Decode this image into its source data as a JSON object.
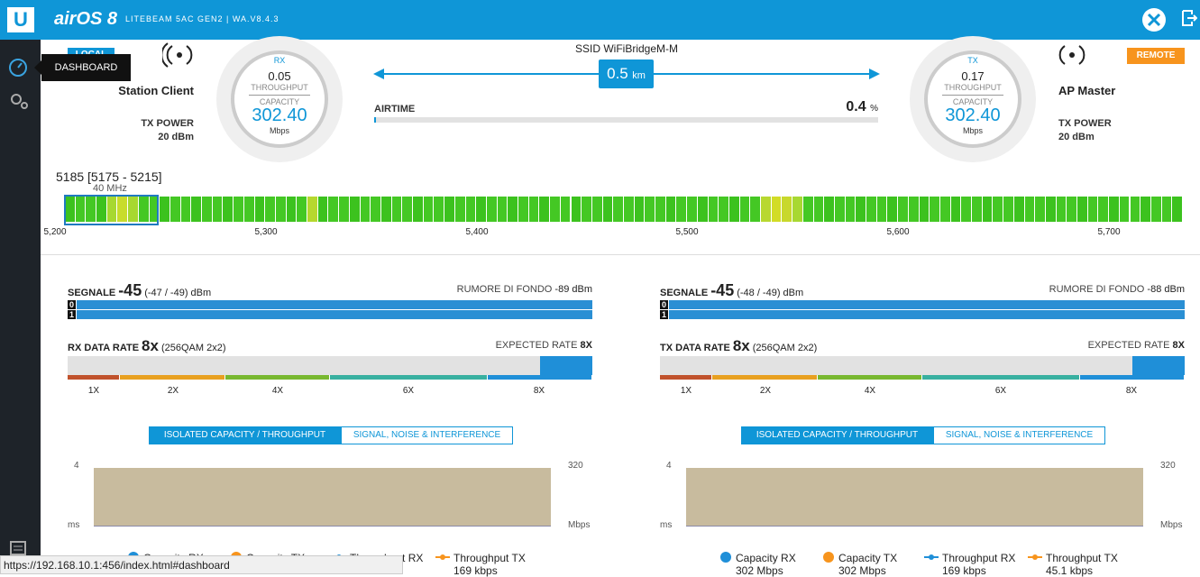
{
  "header": {
    "logo": "U",
    "product": "airOS 8",
    "device": "LITEBEAM 5AC GEN2 | WA.V8.4.3"
  },
  "sidebar": {
    "tooltip": "DASHBOARD"
  },
  "local": {
    "badge": "LOCAL",
    "role": "Station Client",
    "tx_power_label": "TX POWER",
    "tx_power": "20 dBm"
  },
  "remote": {
    "badge": "REMOTE",
    "role": "AP Master",
    "tx_power_label": "TX POWER",
    "tx_power": "20 dBm"
  },
  "gauges": [
    {
      "dir": "RX",
      "throughput": "0.05",
      "throughput_label": "THROUGHPUT",
      "capacity_label": "CAPACITY",
      "capacity": "302.40",
      "unit": "Mbps"
    },
    {
      "dir": "TX",
      "throughput": "0.17",
      "throughput_label": "THROUGHPUT",
      "capacity_label": "CAPACITY",
      "capacity": "302.40",
      "unit": "Mbps"
    }
  ],
  "link": {
    "ssid_label": "SSID",
    "ssid": "WiFiBridgeM-M",
    "distance": "0.5",
    "distance_unit": "km",
    "airtime_label": "AIRTIME",
    "airtime": "0.4",
    "airtime_unit": "%"
  },
  "frequency": {
    "channel": "5185 [5175 - 5215]",
    "width": "40 MHz",
    "ticks": [
      "5,200",
      "5,300",
      "5,400",
      "5,500",
      "5,600",
      "5,700"
    ]
  },
  "panels": [
    {
      "signal_label": "SEGNALE",
      "signal": "-45",
      "signal_detail": "(-47 / -49) dBm",
      "noise_label": "RUMORE DI FONDO",
      "noise": "-89 dBm",
      "chains": [
        "0",
        "1"
      ],
      "rate_label": "RX DATA RATE",
      "rate": "8x",
      "rate_detail": "(256QAM 2x2)",
      "expected_label": "EXPECTED RATE",
      "expected": "8X",
      "rate_ticks": [
        "1X",
        "2X",
        "4X",
        "6X",
        "8X"
      ],
      "tabs": [
        "ISOLATED CAPACITY / THROUGHPUT",
        "SIGNAL, NOISE & INTERFERENCE"
      ],
      "chart": {
        "left_top": "4",
        "left_unit": "ms",
        "right_top": "320",
        "right_unit": "Mbps"
      },
      "legend": [
        {
          "name": "Capacity RX"
        },
        {
          "name": "Capacity TX"
        },
        {
          "name": "Throughput RX"
        },
        {
          "name": "Throughput TX",
          "value": "169 kbps"
        }
      ]
    },
    {
      "signal_label": "SEGNALE",
      "signal": "-45",
      "signal_detail": "(-48 / -49) dBm",
      "noise_label": "RUMORE DI FONDO",
      "noise": "-88 dBm",
      "chains": [
        "0",
        "1"
      ],
      "rate_label": "TX DATA RATE",
      "rate": "8x",
      "rate_detail": "(256QAM 2x2)",
      "expected_label": "EXPECTED RATE",
      "expected": "8X",
      "rate_ticks": [
        "1X",
        "2X",
        "4X",
        "6X",
        "8X"
      ],
      "tabs": [
        "ISOLATED CAPACITY / THROUGHPUT",
        "SIGNAL, NOISE & INTERFERENCE"
      ],
      "chart": {
        "left_top": "4",
        "left_unit": "ms",
        "right_top": "320",
        "right_unit": "Mbps"
      },
      "legend": [
        {
          "name": "Capacity RX",
          "value": "302 Mbps"
        },
        {
          "name": "Capacity TX",
          "value": "302 Mbps"
        },
        {
          "name": "Throughput RX",
          "value": "169 kbps"
        },
        {
          "name": "Throughput TX",
          "value": "45.1 kbps"
        }
      ]
    }
  ],
  "status_bar": "https://192.168.10.1:456/index.html#dashboard"
}
